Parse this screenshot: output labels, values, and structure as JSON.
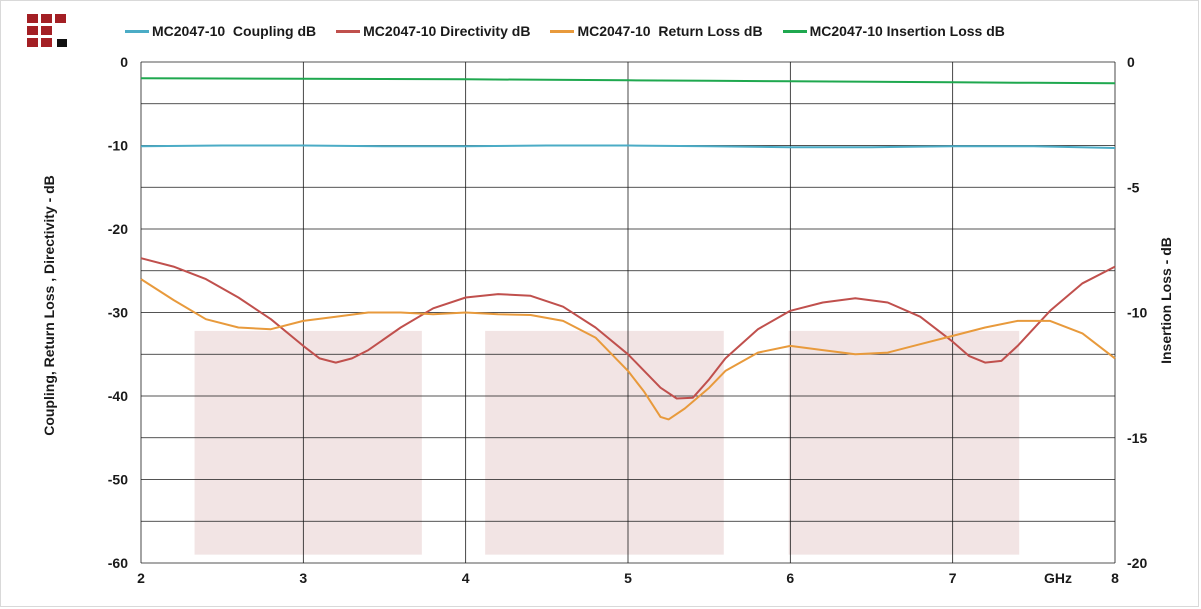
{
  "chart_data": {
    "type": "line",
    "xlabel": "GHz",
    "ylabel_left": "Coupling, Return Loss , Directivity - dB",
    "ylabel_right": "Insertion Loss - dB",
    "xlim": [
      2,
      8
    ],
    "ylim_left": [
      -60,
      0
    ],
    "ylim_right": [
      -20,
      0
    ],
    "x_ticks": [
      "2",
      "3",
      "4",
      "5",
      "6",
      "7",
      "8"
    ],
    "y_ticks_left": [
      "0",
      "-10",
      "-20",
      "-30",
      "-40",
      "-50",
      "-60"
    ],
    "y_ticks_right": [
      "0",
      "-5",
      "-10",
      "-15",
      "-20"
    ],
    "shaded_regions": [
      {
        "x": [
          2.33,
          3.73
        ],
        "y": [
          -59,
          -32.2
        ],
        "color": "#f2e4e4"
      },
      {
        "x": [
          4.12,
          5.59
        ],
        "y": [
          -59,
          -32.2
        ],
        "color": "#f2e4e4"
      },
      {
        "x": [
          5.99,
          7.41
        ],
        "y": [
          -59,
          -32.2
        ],
        "color": "#f2e4e4"
      }
    ],
    "series": [
      {
        "name": "MC2047-10  Coupling dB",
        "axis": "left",
        "color": "#4bacc6",
        "x": [
          2,
          2.5,
          3,
          3.5,
          4,
          4.5,
          5,
          5.5,
          6,
          6.5,
          7,
          7.5,
          8
        ],
        "y": [
          -10.1,
          -10.0,
          -10.0,
          -10.1,
          -10.1,
          -10.0,
          -10.0,
          -10.1,
          -10.2,
          -10.2,
          -10.1,
          -10.1,
          -10.3
        ]
      },
      {
        "name": "MC2047-10 Directivity dB",
        "axis": "left",
        "color": "#c0504d",
        "x": [
          2,
          2.2,
          2.4,
          2.6,
          2.8,
          3.0,
          3.1,
          3.2,
          3.3,
          3.4,
          3.6,
          3.8,
          4.0,
          4.2,
          4.4,
          4.6,
          4.8,
          5.0,
          5.1,
          5.2,
          5.3,
          5.4,
          5.5,
          5.6,
          5.8,
          6.0,
          6.2,
          6.4,
          6.6,
          6.8,
          7.0,
          7.1,
          7.2,
          7.3,
          7.4,
          7.6,
          7.8,
          8.0
        ],
        "y": [
          -23.5,
          -24.5,
          -26.0,
          -28.2,
          -30.8,
          -34.0,
          -35.5,
          -36.0,
          -35.5,
          -34.5,
          -31.8,
          -29.5,
          -28.2,
          -27.8,
          -28.0,
          -29.3,
          -31.8,
          -35.0,
          -37.0,
          -39.0,
          -40.3,
          -40.2,
          -38.0,
          -35.5,
          -32.0,
          -29.8,
          -28.8,
          -28.3,
          -28.8,
          -30.5,
          -33.5,
          -35.2,
          -36.0,
          -35.8,
          -34.0,
          -29.8,
          -26.5,
          -24.5
        ]
      },
      {
        "name": "MC2047-10  Return Loss dB",
        "axis": "left",
        "color": "#e89a3c",
        "x": [
          2,
          2.2,
          2.4,
          2.6,
          2.8,
          3.0,
          3.2,
          3.4,
          3.6,
          3.8,
          4.0,
          4.2,
          4.4,
          4.6,
          4.8,
          5.0,
          5.1,
          5.2,
          5.25,
          5.35,
          5.5,
          5.6,
          5.8,
          6.0,
          6.2,
          6.4,
          6.6,
          6.8,
          7.0,
          7.2,
          7.4,
          7.6,
          7.8,
          8.0
        ],
        "y": [
          -26.0,
          -28.5,
          -30.8,
          -31.8,
          -32.0,
          -31.0,
          -30.5,
          -30.0,
          -30.0,
          -30.2,
          -30.0,
          -30.2,
          -30.3,
          -31.0,
          -33.0,
          -37.0,
          -39.5,
          -42.5,
          -42.8,
          -41.5,
          -39.0,
          -37.0,
          -34.8,
          -34.0,
          -34.5,
          -35.0,
          -34.8,
          -33.8,
          -32.8,
          -31.8,
          -31.0,
          -31.0,
          -32.5,
          -35.5
        ]
      },
      {
        "name": "MC2047-10 Insertion Loss dB",
        "axis": "right",
        "color": "#1fa84f",
        "x": [
          2,
          2.5,
          3,
          3.5,
          4,
          4.5,
          5,
          5.5,
          6,
          6.5,
          7,
          7.5,
          8
        ],
        "y": [
          -0.65,
          -0.66,
          -0.67,
          -0.68,
          -0.69,
          -0.71,
          -0.73,
          -0.75,
          -0.77,
          -0.79,
          -0.81,
          -0.83,
          -0.85
        ]
      }
    ]
  }
}
